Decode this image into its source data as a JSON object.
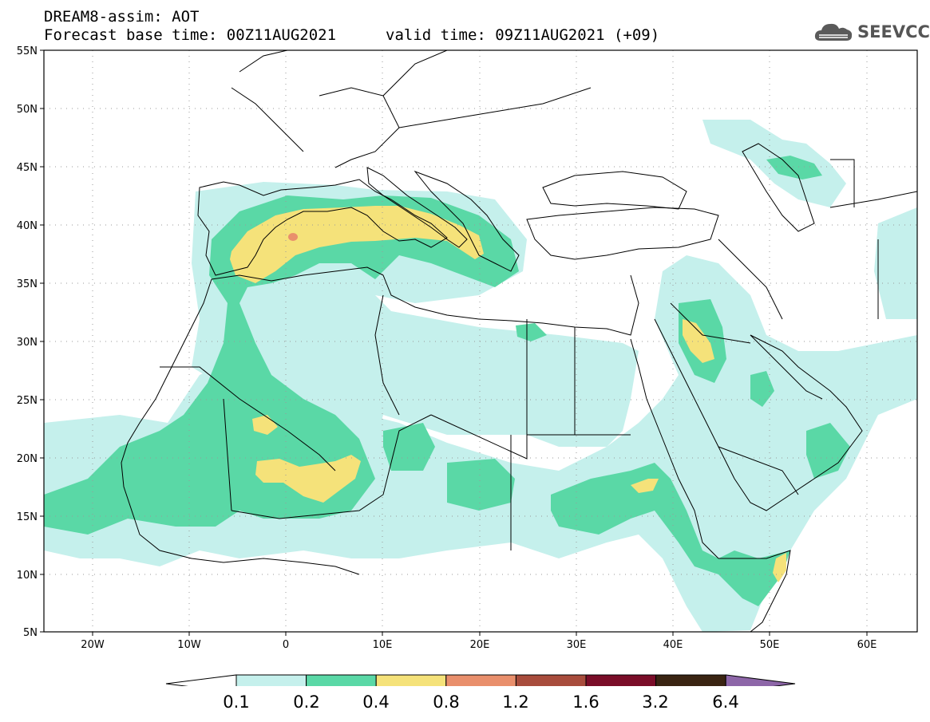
{
  "header": {
    "title": "DREAM8-assim: AOT",
    "base_time": "Forecast base time: 00Z11AUG2021",
    "valid_time": "valid time: 09Z11AUG2021 (+09)"
  },
  "logo": {
    "text": "SEEVCCC",
    "icon": "cloud-icon"
  },
  "map": {
    "projection": "lat-lon",
    "lon_range": [
      -25,
      65
    ],
    "lat_range": [
      5,
      55
    ],
    "lat_labels": [
      "55N",
      "50N",
      "45N",
      "40N",
      "35N",
      "30N",
      "25N",
      "20N",
      "15N",
      "10N",
      "5N"
    ],
    "lon_labels": [
      "20W",
      "10W",
      "0",
      "10E",
      "20E",
      "30E",
      "40E",
      "50E",
      "60E"
    ],
    "grid": "dotted"
  },
  "colorbar": {
    "labels": [
      "0.1",
      "0.2",
      "0.4",
      "0.8",
      "1.2",
      "1.6",
      "3.2",
      "6.4"
    ],
    "colors": [
      "#c5f0ec",
      "#5ad8a6",
      "#f5e27a",
      "#e98f6c",
      "#a84c3c",
      "#7a0d28",
      "#3a2412",
      "#8d66a8"
    ],
    "under_color": "#ffffff"
  }
}
